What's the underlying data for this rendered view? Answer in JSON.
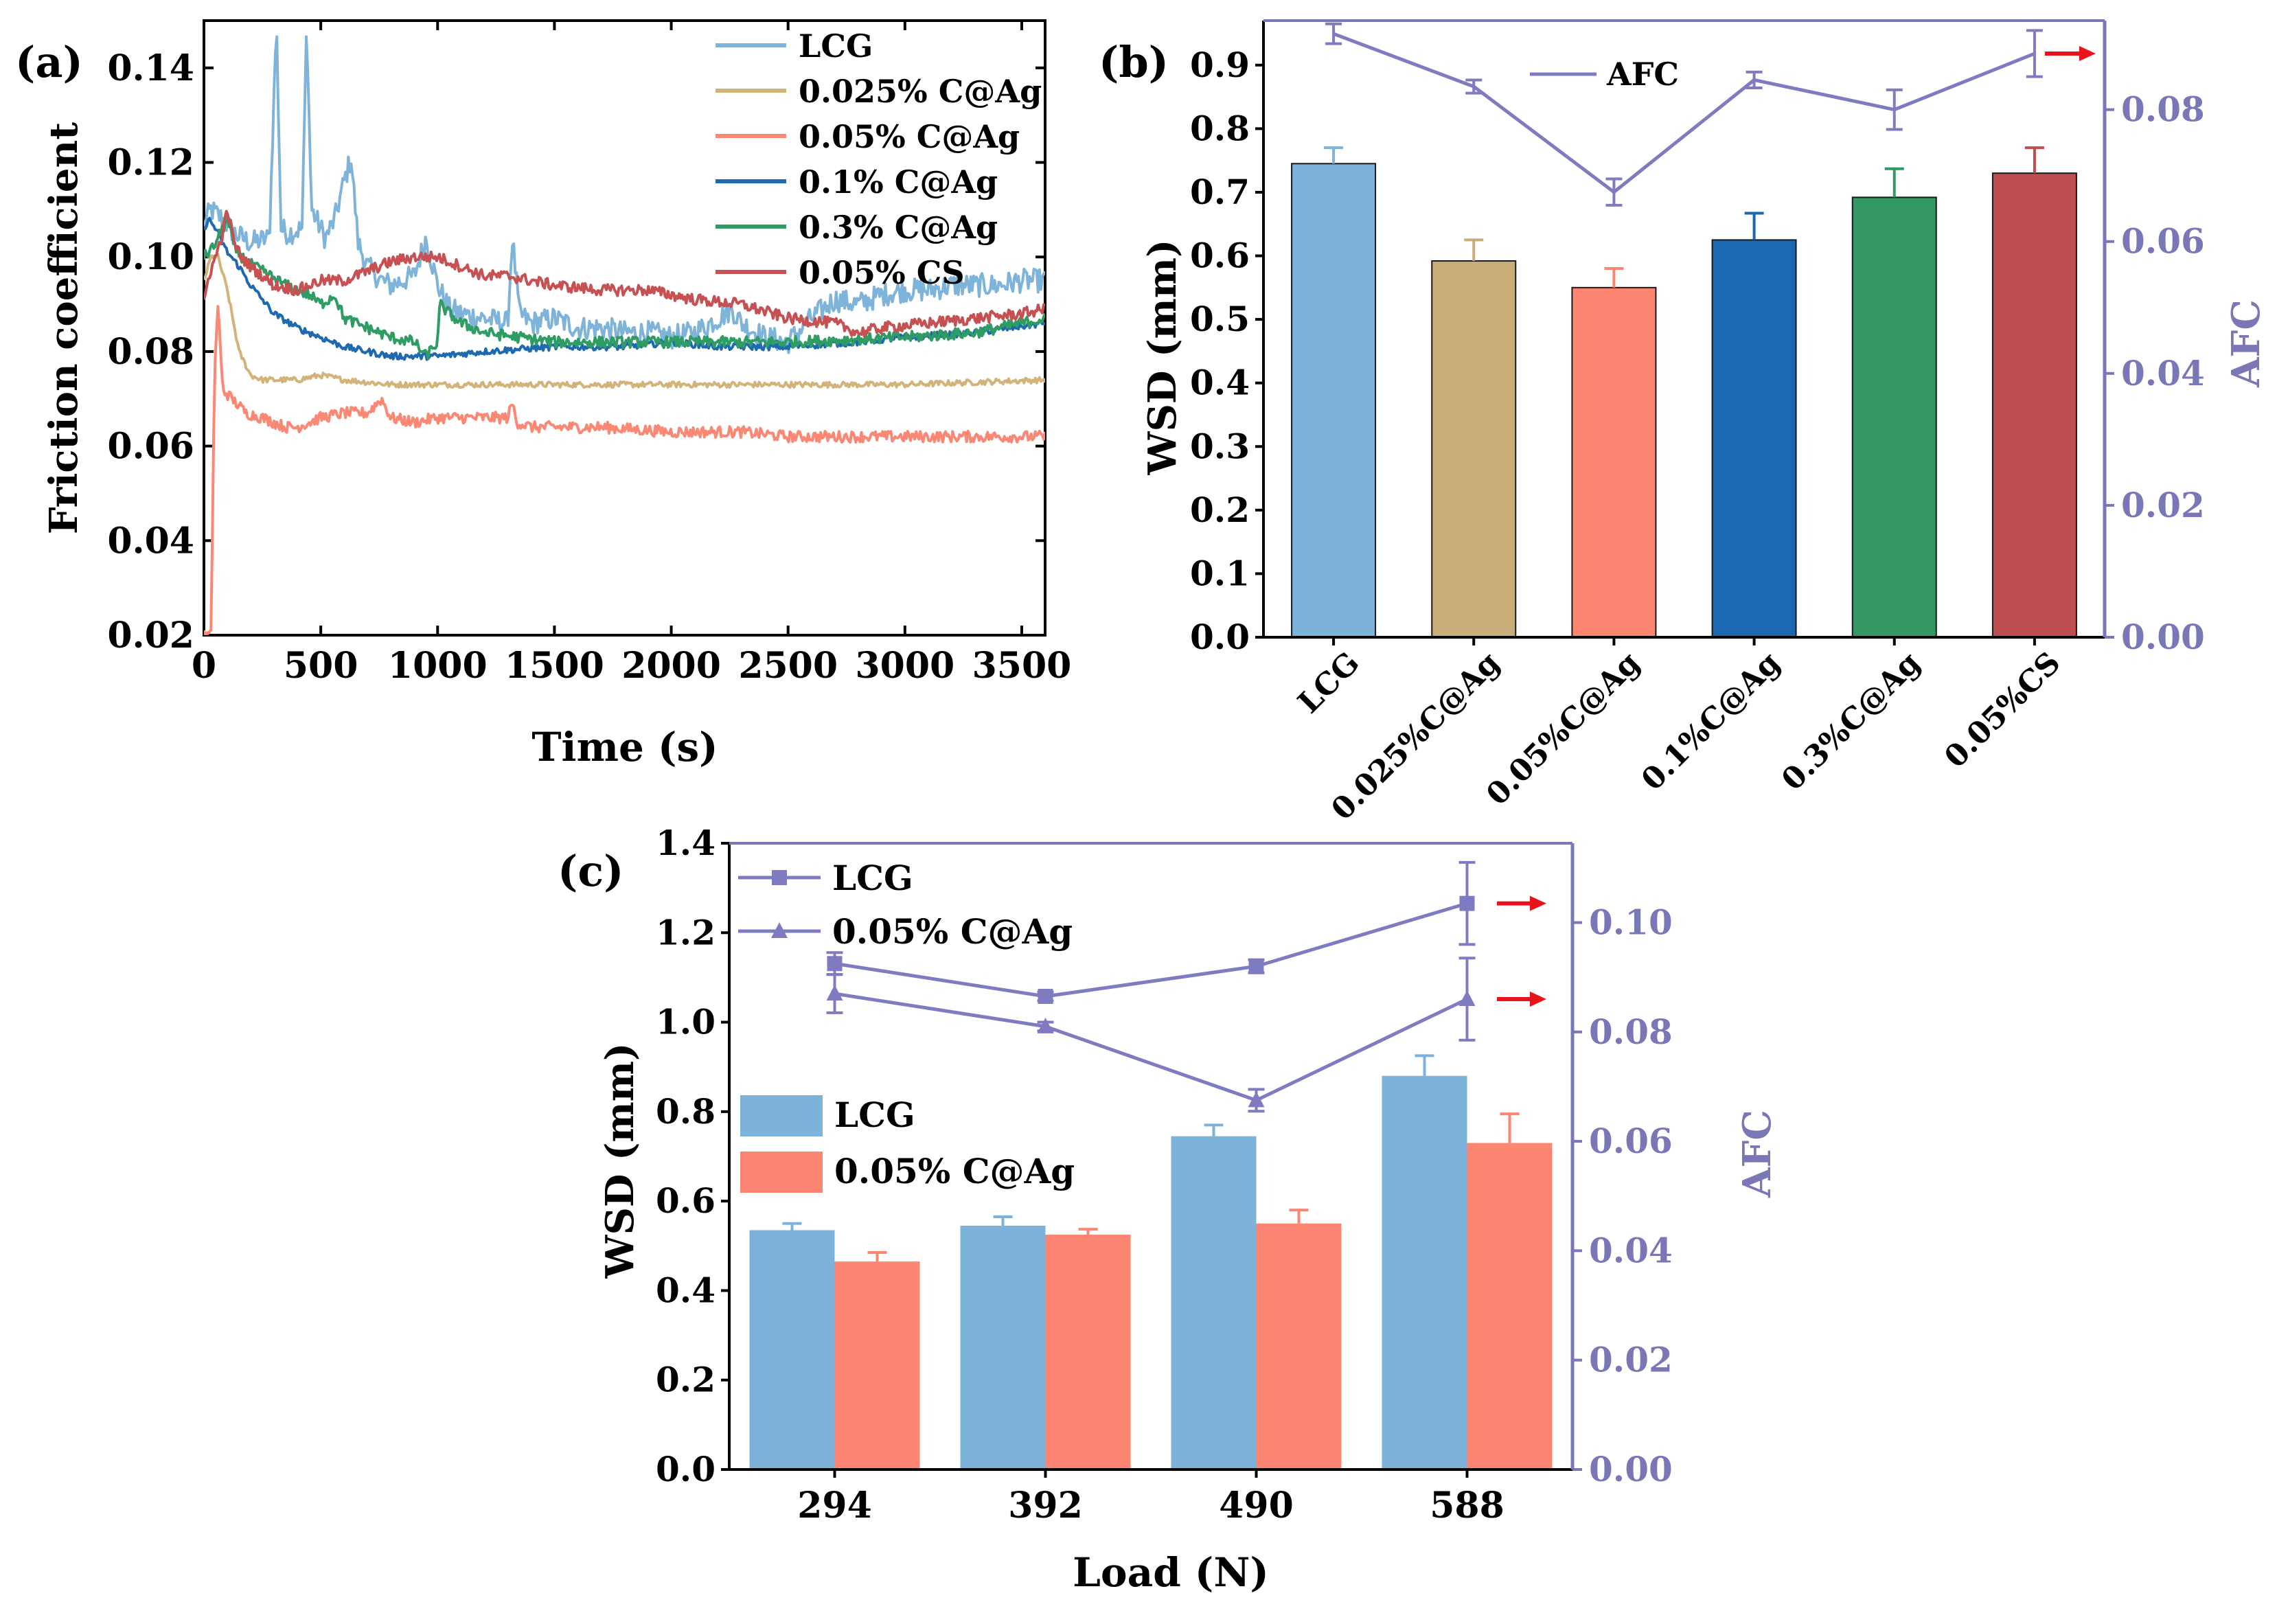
{
  "figure": {
    "panel_labels": [
      "(a)",
      "(b)",
      "(c)"
    ]
  },
  "colors": {
    "LCG": "#7fb4da",
    "C025": "#d2b47a",
    "C05": "#fb8875",
    "C1": "#1f69b0",
    "C3": "#2f9c63",
    "CS": "#c65052",
    "bar_LCG": "#7db3db",
    "bar_C025": "#c8ad79",
    "bar_C05": "#fc8672",
    "bar_C1": "#1b67b0",
    "bar_C3": "#339863",
    "bar_CS": "#c04e4f",
    "afc_axis": "#7a77b6",
    "afc_line": "#7f7bc0",
    "arrow": "#e8141c",
    "axis": "#000000"
  },
  "chart_data": [
    {
      "id": "a",
      "type": "line",
      "title": "",
      "xlabel": "Time (s)",
      "ylabel": "Friction coefficient",
      "xlim": [
        0,
        3600
      ],
      "ylim": [
        0.02,
        0.15
      ],
      "xticks": [
        0,
        500,
        1000,
        1500,
        2000,
        2500,
        3000,
        3500
      ],
      "xtick_labels": [
        "0",
        "500",
        "1000",
        "1500",
        "2000",
        "2500",
        "3000",
        "3500"
      ],
      "yticks": [
        0.02,
        0.04,
        0.06,
        0.08,
        0.1,
        0.12,
        0.14
      ],
      "ytick_labels": [
        "0.02",
        "0.04",
        "0.06",
        "0.08",
        "0.10",
        "0.12",
        "0.14"
      ],
      "legend": "top-right",
      "series": [
        {
          "name": "LCG",
          "color_key": "LCG",
          "jitter": 0.0025,
          "x": [
            0,
            30,
            80,
            130,
            200,
            280,
            310,
            330,
            360,
            420,
            440,
            460,
            520,
            560,
            600,
            630,
            660,
            700,
            760,
            800,
            850,
            900,
            950,
            1000,
            1050,
            1100,
            1200,
            1300,
            1320,
            1350,
            1400,
            1500,
            1600,
            1700,
            1800,
            1900,
            2000,
            2100,
            2200,
            2260,
            2300,
            2400,
            2500,
            2600,
            2700,
            2800,
            2900,
            3000,
            3100,
            3200,
            3300,
            3400,
            3500,
            3600
          ],
          "y": [
            0.107,
            0.11,
            0.108,
            0.105,
            0.103,
            0.104,
            0.15,
            0.106,
            0.105,
            0.106,
            0.15,
            0.11,
            0.104,
            0.108,
            0.116,
            0.121,
            0.103,
            0.098,
            0.095,
            0.094,
            0.095,
            0.096,
            0.104,
            0.094,
            0.089,
            0.088,
            0.087,
            0.086,
            0.104,
            0.088,
            0.086,
            0.087,
            0.085,
            0.085,
            0.084,
            0.084,
            0.083,
            0.084,
            0.087,
            0.089,
            0.086,
            0.083,
            0.082,
            0.087,
            0.091,
            0.09,
            0.092,
            0.093,
            0.093,
            0.094,
            0.094,
            0.094,
            0.095,
            0.095
          ]
        },
        {
          "name": "0.025% C@Ag",
          "color_key": "C025",
          "jitter": 0.0006,
          "x": [
            0,
            30,
            60,
            100,
            150,
            200,
            250,
            300,
            400,
            500,
            600,
            800,
            1000,
            1500,
            2000,
            2500,
            3000,
            3600
          ],
          "y": [
            0.095,
            0.1,
            0.1,
            0.093,
            0.08,
            0.075,
            0.074,
            0.074,
            0.074,
            0.075,
            0.074,
            0.073,
            0.073,
            0.073,
            0.073,
            0.073,
            0.073,
            0.074
          ]
        },
        {
          "name": "0.05% C@Ag",
          "color_key": "C05",
          "jitter": 0.0012,
          "x": [
            0,
            30,
            45,
            60,
            80,
            120,
            180,
            250,
            300,
            350,
            400,
            500,
            600,
            700,
            760,
            800,
            900,
            1000,
            1100,
            1200,
            1300,
            1320,
            1340,
            1400,
            1500,
            1700,
            2000,
            2300,
            2500,
            2700,
            3000,
            3300,
            3600
          ],
          "y": [
            0.02,
            0.02,
            0.075,
            0.09,
            0.072,
            0.07,
            0.067,
            0.066,
            0.065,
            0.064,
            0.064,
            0.066,
            0.067,
            0.067,
            0.07,
            0.066,
            0.065,
            0.066,
            0.066,
            0.066,
            0.066,
            0.069,
            0.065,
            0.064,
            0.064,
            0.064,
            0.063,
            0.063,
            0.062,
            0.062,
            0.062,
            0.062,
            0.062
          ]
        },
        {
          "name": "0.1% C@Ag",
          "color_key": "C1",
          "jitter": 0.0007,
          "x": [
            0,
            20,
            50,
            100,
            150,
            200,
            300,
            400,
            500,
            600,
            700,
            800,
            900,
            1000,
            1200,
            1500,
            1800,
            2000,
            2200,
            2500,
            2800,
            3000,
            3300,
            3600
          ],
          "y": [
            0.106,
            0.108,
            0.106,
            0.101,
            0.098,
            0.094,
            0.088,
            0.085,
            0.083,
            0.081,
            0.08,
            0.079,
            0.079,
            0.079,
            0.08,
            0.081,
            0.081,
            0.082,
            0.081,
            0.081,
            0.082,
            0.083,
            0.084,
            0.086
          ]
        },
        {
          "name": "0.3% C@Ag",
          "color_key": "C3",
          "jitter": 0.0012,
          "x": [
            0,
            40,
            80,
            100,
            130,
            180,
            250,
            350,
            450,
            500,
            560,
            600,
            700,
            800,
            900,
            950,
            1000,
            1010,
            1050,
            1100,
            1200,
            1500,
            2000,
            2500,
            3000,
            3300,
            3600
          ],
          "y": [
            0.1,
            0.102,
            0.106,
            0.108,
            0.102,
            0.099,
            0.097,
            0.094,
            0.092,
            0.09,
            0.092,
            0.087,
            0.085,
            0.083,
            0.082,
            0.079,
            0.082,
            0.09,
            0.088,
            0.086,
            0.084,
            0.082,
            0.082,
            0.082,
            0.083,
            0.084,
            0.087
          ]
        },
        {
          "name": "0.05% CS",
          "color_key": "CS",
          "jitter": 0.0012,
          "x": [
            0,
            20,
            50,
            80,
            100,
            130,
            160,
            200,
            300,
            400,
            500,
            600,
            700,
            800,
            900,
            1000,
            1100,
            1200,
            1300,
            1500,
            1700,
            1900,
            2100,
            2300,
            2500,
            2700,
            2800,
            2900,
            3100,
            3300,
            3500,
            3600
          ],
          "y": [
            0.09,
            0.096,
            0.1,
            0.105,
            0.11,
            0.103,
            0.1,
            0.098,
            0.094,
            0.093,
            0.095,
            0.095,
            0.097,
            0.099,
            0.1,
            0.1,
            0.098,
            0.096,
            0.096,
            0.094,
            0.093,
            0.093,
            0.091,
            0.09,
            0.087,
            0.086,
            0.084,
            0.085,
            0.086,
            0.087,
            0.088,
            0.089
          ]
        }
      ]
    },
    {
      "id": "b",
      "type": "bar",
      "title": "",
      "ylabel": "WSD (mm)",
      "y2label": "AFC",
      "categories": [
        "LCG",
        "0.025%C@Ag",
        "0.05%C@Ag",
        "0.1%C@Ag",
        "0.3%C@Ag",
        "0.05%CS"
      ],
      "values": [
        0.745,
        0.592,
        0.55,
        0.625,
        0.692,
        0.73
      ],
      "errors": [
        0.025,
        0.033,
        0.03,
        0.042,
        0.045,
        0.04
      ],
      "bar_color_keys": [
        "bar_LCG",
        "bar_C025",
        "bar_C05",
        "bar_C1",
        "bar_C3",
        "bar_CS"
      ],
      "ylim": [
        0,
        0.97
      ],
      "yticks": [
        0.0,
        0.1,
        0.2,
        0.3,
        0.4,
        0.5,
        0.6,
        0.7,
        0.8,
        0.9
      ],
      "ytick_labels": [
        "0.0",
        "0.1",
        "0.2",
        "0.3",
        "0.4",
        "0.5",
        "0.6",
        "0.7",
        "0.8",
        "0.9"
      ],
      "y2lim": [
        0,
        0.0935
      ],
      "y2ticks": [
        0.0,
        0.02,
        0.04,
        0.06,
        0.08
      ],
      "y2tick_labels": [
        "0.00",
        "0.02",
        "0.04",
        "0.06",
        "0.08"
      ],
      "line_series": [
        {
          "name": "AFC",
          "axis": "right",
          "marker": "none",
          "values": [
            0.0915,
            0.0835,
            0.0675,
            0.0845,
            0.08,
            0.0885
          ],
          "errors": [
            0.0015,
            0.001,
            0.002,
            0.0012,
            0.003,
            0.0035
          ]
        }
      ],
      "legend_entries": [
        "AFC"
      ],
      "legend": "top-center",
      "arrow_points_to": "right-axis"
    },
    {
      "id": "c",
      "type": "bar",
      "title": "",
      "xlabel": "Load (N)",
      "ylabel": "WSD (mm)",
      "y2label": "AFC",
      "categories": [
        "294",
        "392",
        "490",
        "588"
      ],
      "series": [
        {
          "name": "LCG",
          "color_key": "bar_LCG",
          "values": [
            0.535,
            0.545,
            0.745,
            0.88
          ],
          "errors": [
            0.015,
            0.02,
            0.025,
            0.045
          ]
        },
        {
          "name": "0.05% C@Ag",
          "color_key": "bar_C05",
          "values": [
            0.465,
            0.525,
            0.55,
            0.73
          ],
          "errors": [
            0.02,
            0.012,
            0.03,
            0.065
          ]
        }
      ],
      "ylim": [
        0,
        1.4
      ],
      "yticks": [
        0.0,
        0.2,
        0.4,
        0.6,
        0.8,
        1.0,
        1.2,
        1.4
      ],
      "ytick_labels": [
        "0.0",
        "0.2",
        "0.4",
        "0.6",
        "0.8",
        "1.0",
        "1.2",
        "1.4"
      ],
      "y2lim": [
        0,
        0.1145
      ],
      "y2ticks": [
        0.0,
        0.02,
        0.04,
        0.06,
        0.08,
        0.1
      ],
      "y2tick_labels": [
        "0.00",
        "0.02",
        "0.04",
        "0.06",
        "0.08",
        "0.10"
      ],
      "line_series": [
        {
          "name": "LCG",
          "axis": "right",
          "marker": "square",
          "values": [
            0.0925,
            0.0865,
            0.092,
            0.1035
          ],
          "errors": [
            0.002,
            0.0008,
            0.0012,
            0.0075
          ]
        },
        {
          "name": "0.05% C@Ag",
          "axis": "right",
          "marker": "triangle",
          "values": [
            0.087,
            0.081,
            0.0675,
            0.086
          ],
          "errors": [
            0.0035,
            0.0008,
            0.002,
            0.0075
          ]
        }
      ],
      "legend": "top-left",
      "arrow_points_to": "right-axis"
    }
  ]
}
